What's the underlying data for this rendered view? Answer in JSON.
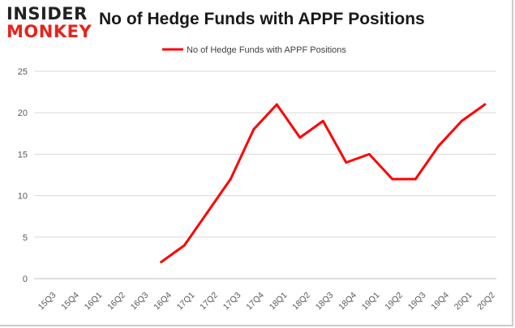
{
  "brand": {
    "line1": "INSIDER",
    "line2": "MONKEY"
  },
  "colors": {
    "series": "#ff0000",
    "grid": "#d9d9d9",
    "axis_text": "#595959",
    "brand_red": "#e8231b"
  },
  "chart_data": {
    "type": "line",
    "title": "No of Hedge Funds with APPF Positions",
    "xlabel": "",
    "ylabel": "",
    "legend_position": "top",
    "grid": true,
    "ylim": [
      0,
      25
    ],
    "yticks": [
      0,
      5,
      10,
      15,
      20,
      25
    ],
    "categories": [
      "15Q3",
      "15Q4",
      "16Q1",
      "16Q2",
      "16Q3",
      "16Q4",
      "17Q1",
      "17Q2",
      "17Q3",
      "17Q4",
      "18Q1",
      "18Q2",
      "18Q3",
      "18Q4",
      "19Q1",
      "19Q2",
      "19Q3",
      "19Q4",
      "20Q1",
      "20Q2"
    ],
    "series": [
      {
        "name": "No of Hedge Funds with APPF Positions",
        "values": [
          null,
          null,
          null,
          null,
          null,
          2,
          4,
          8,
          12,
          18,
          21,
          17,
          19,
          14,
          15,
          12,
          12,
          16,
          19,
          21
        ]
      }
    ]
  }
}
